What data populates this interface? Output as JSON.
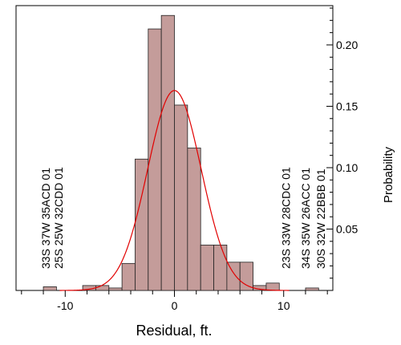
{
  "chart_data": {
    "type": "bar",
    "xlabel": "Residual, ft.",
    "ylabel": "Probability",
    "xlim": [
      -14.5,
      14.5
    ],
    "ylim": [
      0,
      0.232
    ],
    "x_ticks": [
      -10,
      0,
      10
    ],
    "x_tick_labels": [
      "-10",
      "0",
      "10"
    ],
    "y_ticks": [
      0.05,
      0.1,
      0.15,
      0.2
    ],
    "y_tick_labels": [
      "0.05",
      "0.10",
      "0.15",
      "0.20"
    ],
    "x_minor_step": 2,
    "y_minor_step": 0.01,
    "bin_width": 1.2,
    "bins": [
      {
        "x0": -12.0,
        "value": 0.003
      },
      {
        "x0": -8.4,
        "value": 0.004
      },
      {
        "x0": -7.2,
        "value": 0.004
      },
      {
        "x0": -6.0,
        "value": 0.002
      },
      {
        "x0": -4.8,
        "value": 0.022
      },
      {
        "x0": -3.6,
        "value": 0.107
      },
      {
        "x0": -2.4,
        "value": 0.213
      },
      {
        "x0": -1.2,
        "value": 0.224
      },
      {
        "x0": 0.0,
        "value": 0.151
      },
      {
        "x0": 1.2,
        "value": 0.116
      },
      {
        "x0": 2.4,
        "value": 0.037
      },
      {
        "x0": 3.6,
        "value": 0.037
      },
      {
        "x0": 4.8,
        "value": 0.023
      },
      {
        "x0": 6.0,
        "value": 0.023
      },
      {
        "x0": 7.2,
        "value": 0.004
      },
      {
        "x0": 8.4,
        "value": 0.006
      },
      {
        "x0": 12.0,
        "value": 0.002
      }
    ],
    "normal_fit": {
      "mean": 0.0,
      "std": 2.45
    },
    "annotations": [
      {
        "text": "33S 37W 35ACD 01",
        "x": -11.8
      },
      {
        "text": "25S 25W 32CDD 01",
        "x": -10.6
      },
      {
        "text": "23S 33W 28CDC 01",
        "x": 10.2
      },
      {
        "text": "34S 35W 26ACC 01",
        "x": 12.0
      },
      {
        "text": "30S 32W 22BBB 01",
        "x": 13.4
      }
    ],
    "colors": {
      "bar_fill": "#c49c9a",
      "bar_edge": "#222222",
      "fit_line": "#e10000",
      "axis": "#000000"
    }
  }
}
